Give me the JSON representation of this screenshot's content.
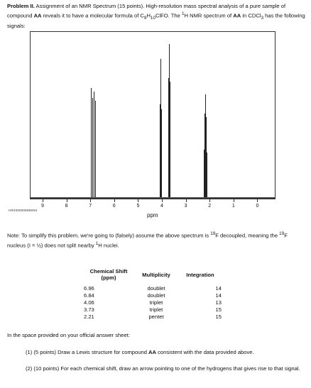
{
  "intro": {
    "problem_label": "Problem II.",
    "text_1": " Assignment of an NMR Spectrum (15 points). High-resolution mass spectral analysis of a pure sample of compound ",
    "compound": "AA",
    "text_2": " reveals it to have a molecular formula of C",
    "c_sub": "9",
    "h_text": "H",
    "h_sub": "10",
    "formula_end": "ClFO. The ",
    "h_sup": "1",
    "text_3": "H NMR spectrum of ",
    "compound_2": "AA",
    "text_4": " in CDCl",
    "cdcl_sub": "3",
    "text_5": " has the following signals:"
  },
  "spectrum": {
    "axis_ticks": [
      "9",
      "8",
      "7",
      "6",
      "5",
      "4",
      "3",
      "2",
      "1",
      "0"
    ],
    "axis_unit": "ppm",
    "code": "HR2006008085NS",
    "peaks_ppm": [
      6.99,
      6.93,
      6.87,
      6.81,
      4.09,
      4.06,
      4.03,
      3.76,
      3.73,
      3.7,
      2.27,
      2.24,
      2.21,
      2.18,
      2.15
    ],
    "peaks_rel_height": [
      0.68,
      0.62,
      0.66,
      0.6,
      0.58,
      0.86,
      0.55,
      0.74,
      0.95,
      0.72,
      0.3,
      0.52,
      0.64,
      0.5,
      0.28
    ]
  },
  "note": {
    "text_1": "Note: To simplify this problem, we're going to (falsely) assume the above spectrum is ",
    "sup_1": "19",
    "text_2": "F decoupled, meaning the ",
    "sup_2": "19",
    "text_3": "F nucleus (I = ½) does not split nearby ",
    "sup_3": "1",
    "text_4": "H nuclei."
  },
  "table": {
    "header_shift": "Chemical Shift",
    "header_shift_unit": "(ppm)",
    "header_multiplicity": "Multiplicity",
    "header_integration": "Integration",
    "rows": [
      {
        "shift": "6.96",
        "multiplicity": "doublet",
        "integration": "14"
      },
      {
        "shift": "6.84",
        "multiplicity": "doublet",
        "integration": "14"
      },
      {
        "shift": "4.06",
        "multiplicity": "triplet",
        "integration": "13"
      },
      {
        "shift": "3.73",
        "multiplicity": "triplet",
        "integration": "15"
      },
      {
        "shift": "2.21",
        "multiplicity": "pentet",
        "integration": "15"
      }
    ]
  },
  "outro": "In the space provided on your official answer sheet:",
  "questions": [
    {
      "text_1": "(1) (5 points) Draw a Lewis structure for compound ",
      "bold": "AA",
      "text_2": " consistent with the data provided above."
    },
    {
      "text_1": "(2) (10 points) For each chemical shift, draw an arrow pointing to one of the hydrogens that gives rise to that signal.",
      "bold": "",
      "text_2": ""
    }
  ]
}
